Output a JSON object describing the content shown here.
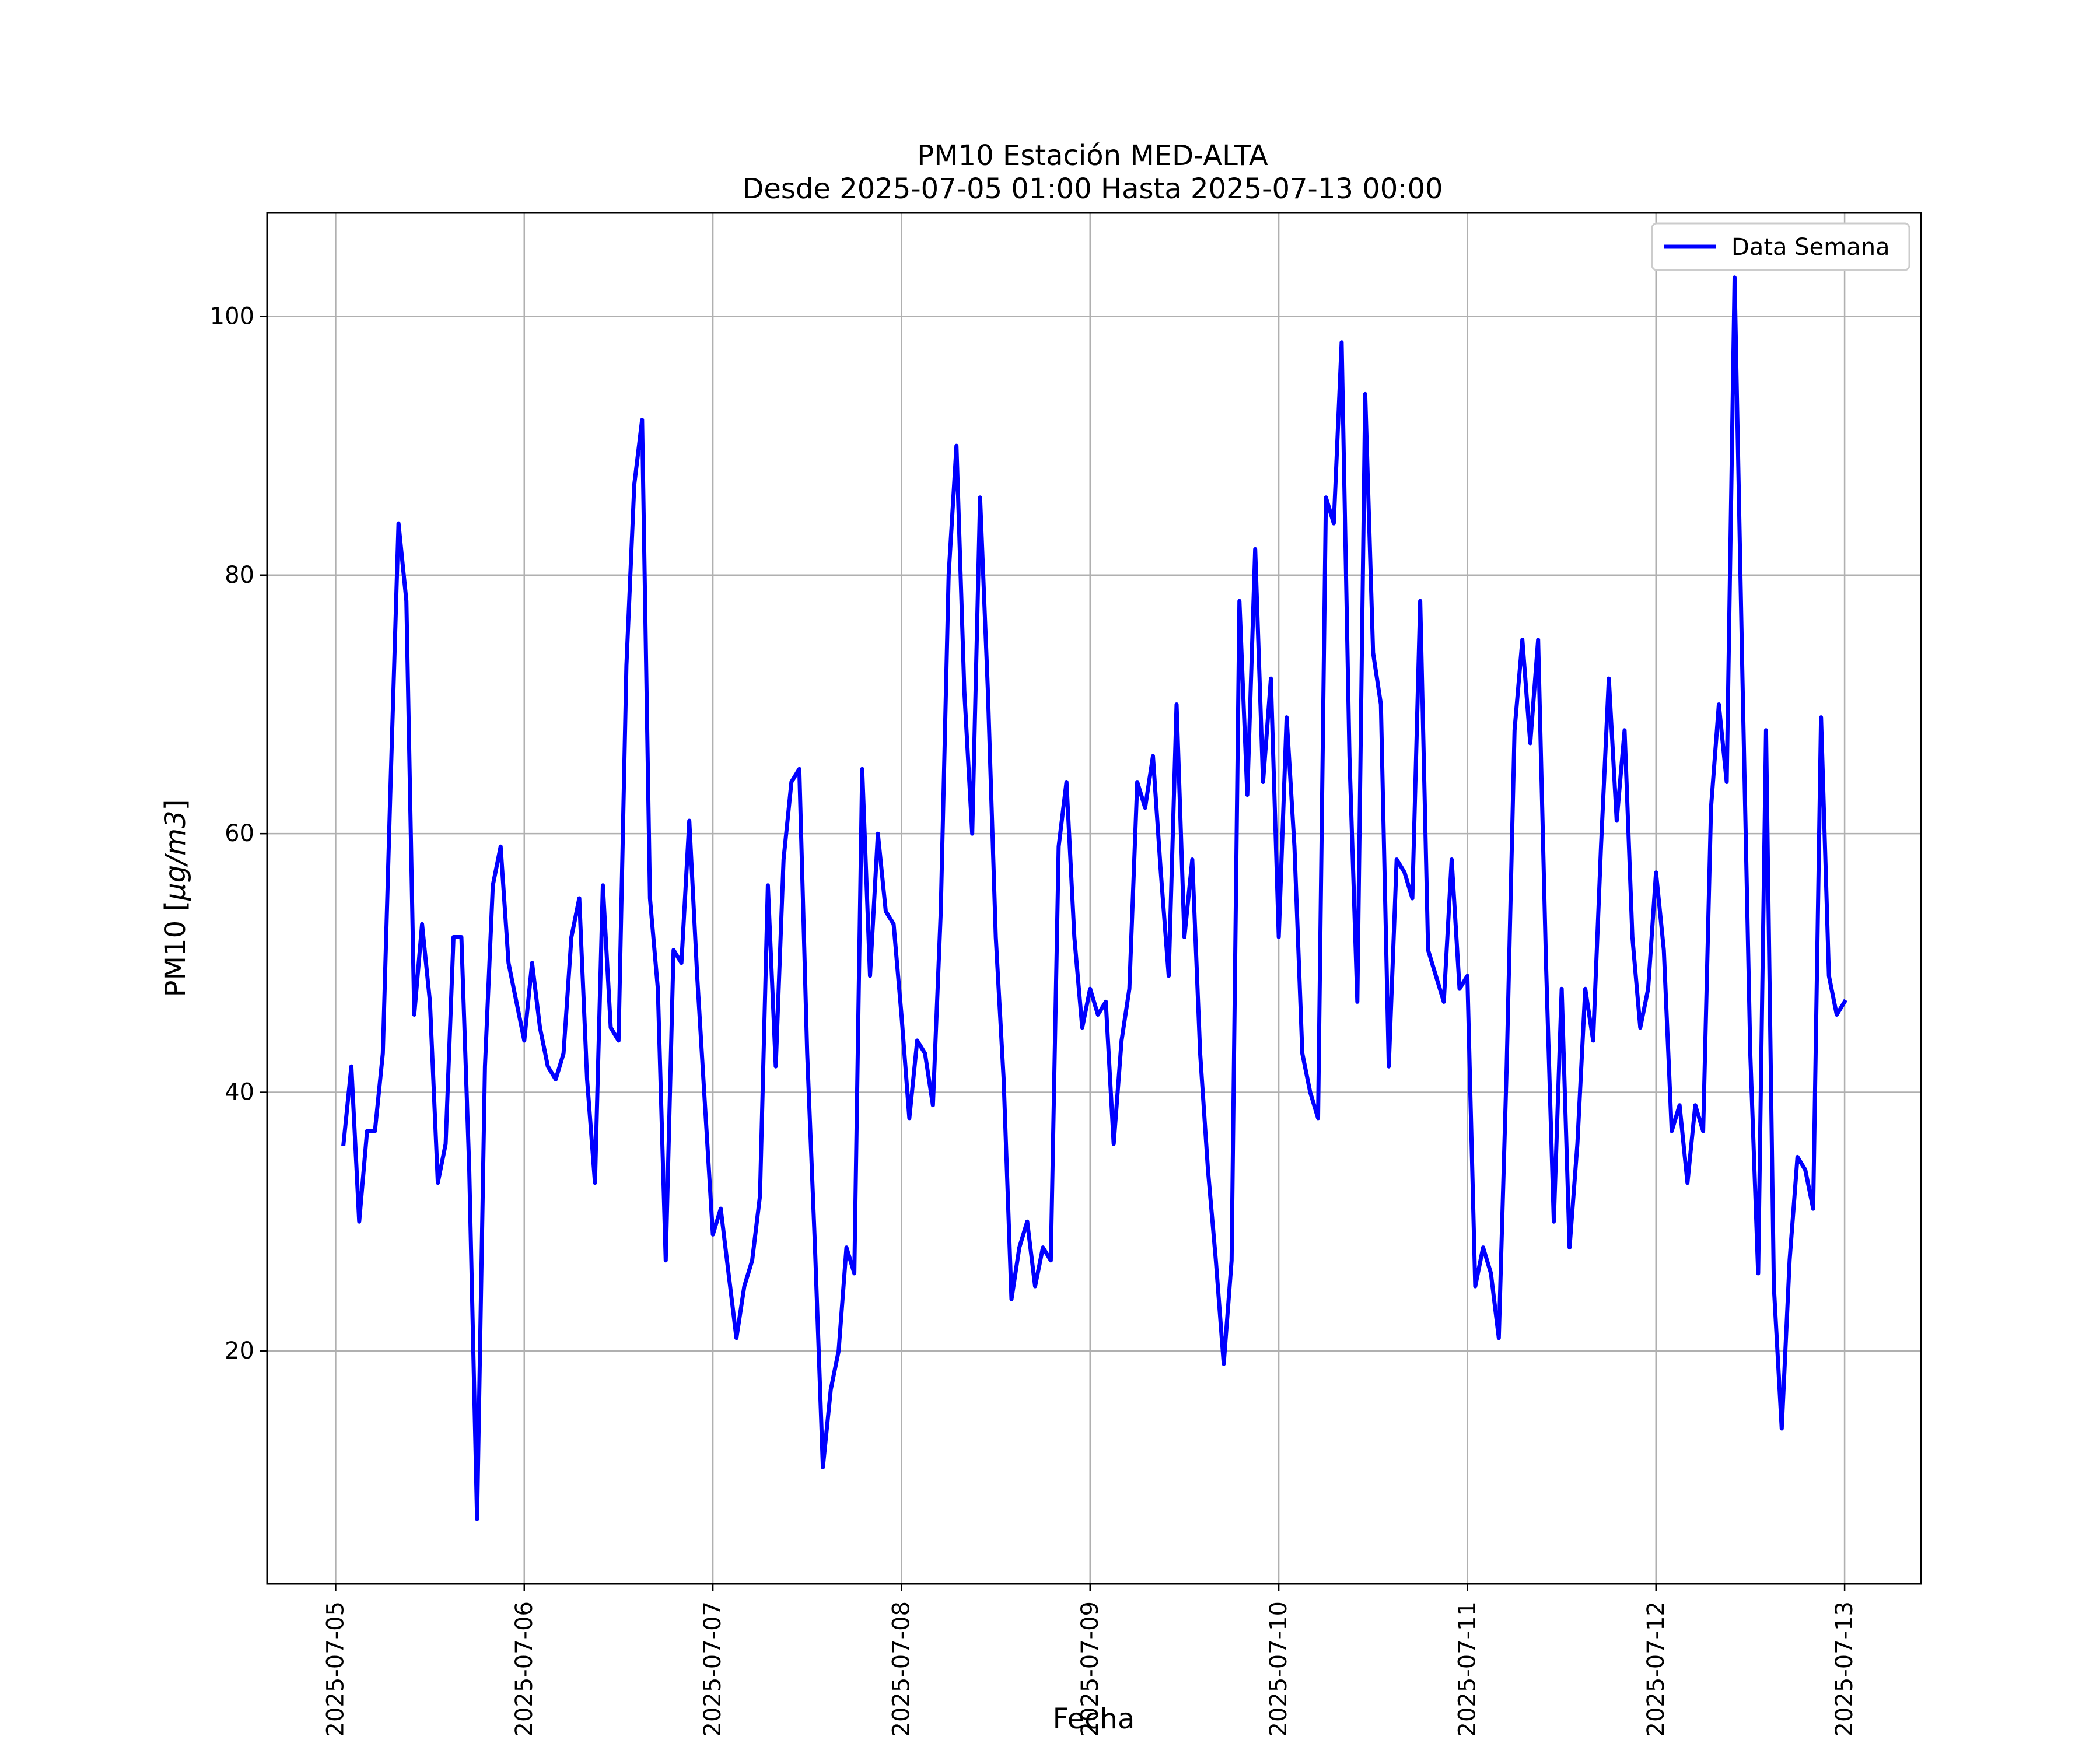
{
  "chart_data": {
    "type": "line",
    "title": "PM10 Estación MED-ALTA",
    "subtitle": "Desde 2025-07-05 01:00 Hasta 2025-07-13 00:00",
    "xlabel": "Fecha",
    "ylabel_prefix": "PM10 [",
    "ylabel_unit": "μg/m3",
    "ylabel_suffix": "]",
    "x_ticks": [
      "2025-07-05",
      "2025-07-06",
      "2025-07-07",
      "2025-07-08",
      "2025-07-09",
      "2025-07-10",
      "2025-07-11",
      "2025-07-12",
      "2025-07-13"
    ],
    "y_ticks": [
      20,
      40,
      60,
      80,
      100
    ],
    "ylim": [
      2,
      108
    ],
    "xlim": [
      "2025-07-04 15:17",
      "2025-07-13 09:43"
    ],
    "grid": true,
    "legend_position": "top-right",
    "line_color": "#0000ff",
    "series": [
      {
        "name": "Data Semana",
        "start": "2025-07-05 01:00",
        "step_hours": 1,
        "values": [
          36,
          42,
          30,
          37,
          37,
          43,
          64,
          84,
          78,
          46,
          53,
          47,
          33,
          36,
          52,
          52,
          34,
          7,
          42,
          56,
          59,
          50,
          47,
          44,
          50,
          45,
          42,
          41,
          43,
          52,
          55,
          41,
          33,
          56,
          45,
          44,
          73,
          87,
          92,
          55,
          48,
          27,
          51,
          50,
          61,
          49,
          39,
          29,
          31,
          26,
          21,
          25,
          27,
          32,
          56,
          42,
          58,
          64,
          65,
          43,
          28,
          11,
          17,
          20,
          28,
          26,
          65,
          49,
          60,
          54,
          53,
          46,
          38,
          44,
          43,
          39,
          54,
          80,
          90,
          71,
          60,
          86,
          71,
          52,
          41,
          24,
          28,
          30,
          25,
          28,
          27,
          59,
          64,
          52,
          45,
          48,
          46,
          47,
          36,
          44,
          48,
          64,
          62,
          66,
          57,
          49,
          70,
          52,
          58,
          43,
          34,
          27,
          19,
          27,
          78,
          63,
          82,
          64,
          72,
          52,
          69,
          59,
          43,
          40,
          38,
          86,
          84,
          98,
          66,
          47,
          94,
          74,
          70,
          42,
          58,
          57,
          55,
          78,
          51,
          49,
          47,
          58,
          48,
          49,
          25,
          28,
          26,
          21,
          42,
          68,
          75,
          67,
          75,
          50,
          30,
          48,
          28,
          36,
          48,
          44,
          59,
          72,
          61,
          68,
          52,
          45,
          48,
          57,
          51,
          37,
          39,
          33,
          39,
          37,
          62,
          70,
          64,
          103,
          72,
          43,
          26,
          68,
          25,
          14,
          27,
          35,
          34,
          31,
          69,
          49,
          46,
          47
        ]
      }
    ]
  }
}
